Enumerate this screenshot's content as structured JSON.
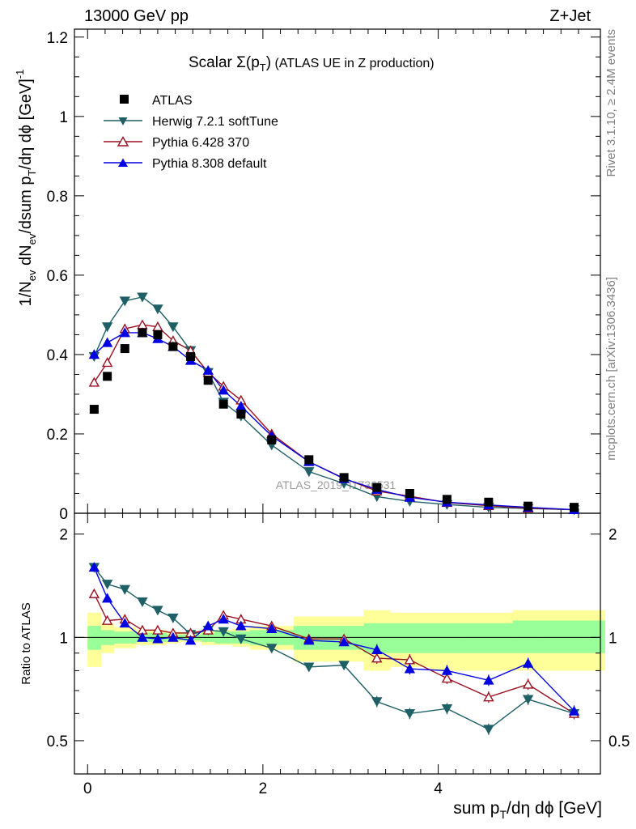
{
  "header": {
    "left": "13000 GeV pp",
    "right": "Z+Jet"
  },
  "side_labels": {
    "rivet": "Rivet 3.1.10, ≥ 2.4M events",
    "mcplots": "mcplots.cern.ch [arXiv:1306.3436]"
  },
  "colors": {
    "atlas": "#000000",
    "herwig": "#1f5f66",
    "pythia6": "#9b1020",
    "pythia8": "#0000e0",
    "band_inner": "#99ff99",
    "band_outer": "#ffff99"
  },
  "chart_data": [
    {
      "type": "line",
      "title": "Scalar Σ(p_T) (ATLAS UE in Z production)",
      "xlabel": "sum p_T/dη dϕ [GeV]",
      "ylabel": "1/N_ev dN_ev/dsum p_T/dη dϕ [GeV]^-1",
      "xlim": [
        -0.15,
        5.85
      ],
      "ylim": [
        0,
        1.22
      ],
      "yticks": [
        "0",
        "0.2",
        "0.4",
        "0.6",
        "0.8",
        "1",
        "1.2"
      ],
      "watermark": "ATLAS_2019_I1736531",
      "legend_placement": "top-left",
      "x": [
        0.075,
        0.225,
        0.425,
        0.625,
        0.8,
        0.975,
        1.175,
        1.375,
        1.55,
        1.75,
        2.1,
        2.525,
        2.925,
        3.3,
        3.675,
        4.1,
        4.575,
        5.025,
        5.55
      ],
      "series": [
        {
          "name": "ATLAS",
          "values": [
            0.262,
            0.345,
            0.415,
            0.455,
            0.45,
            0.42,
            0.395,
            0.335,
            0.275,
            0.25,
            0.185,
            0.135,
            0.09,
            0.065,
            0.05,
            0.035,
            0.028,
            0.018,
            0.015
          ]
        },
        {
          "name": "Herwig 7.2.1 softTune",
          "values": [
            0.395,
            0.47,
            0.535,
            0.545,
            0.515,
            0.47,
            0.41,
            0.355,
            0.28,
            0.245,
            0.172,
            0.105,
            0.075,
            0.042,
            0.03,
            0.022,
            0.015,
            0.012,
            0.009
          ]
        },
        {
          "name": "Pythia 6.428 370",
          "values": [
            0.33,
            0.38,
            0.465,
            0.475,
            0.47,
            0.435,
            0.41,
            0.355,
            0.32,
            0.285,
            0.2,
            0.13,
            0.088,
            0.056,
            0.043,
            0.027,
            0.019,
            0.013,
            0.009
          ]
        },
        {
          "name": "Pythia 8.308 default",
          "values": [
            0.4,
            0.43,
            0.455,
            0.455,
            0.44,
            0.42,
            0.385,
            0.36,
            0.31,
            0.27,
            0.195,
            0.13,
            0.087,
            0.06,
            0.04,
            0.028,
            0.021,
            0.015,
            0.009
          ]
        }
      ]
    },
    {
      "type": "line",
      "title": "",
      "xlabel": "sum p_T/dη dϕ [GeV]",
      "ylabel": "Ratio to ATLAS",
      "xlim": [
        -0.15,
        5.85
      ],
      "ylim": [
        0.4,
        2.3
      ],
      "yticks": [
        "0.5",
        "1",
        "2"
      ],
      "xticks": [
        "0",
        "2",
        "4"
      ],
      "reference_line": 1,
      "bands": {
        "edges": [
          0,
          0.15,
          0.3,
          0.55,
          0.7,
          0.9,
          1.05,
          1.3,
          1.45,
          1.65,
          1.85,
          2.35,
          2.7,
          3.15,
          3.45,
          3.9,
          4.3,
          4.85,
          5.2,
          5.9
        ],
        "inner": [
          [
            0.92,
            1.08
          ],
          [
            0.95,
            1.05
          ],
          [
            0.96,
            1.04
          ],
          [
            0.97,
            1.03
          ],
          [
            0.97,
            1.03
          ],
          [
            0.98,
            1.02
          ],
          [
            0.98,
            1.02
          ],
          [
            0.97,
            1.03
          ],
          [
            0.96,
            1.04
          ],
          [
            0.96,
            1.04
          ],
          [
            0.95,
            1.05
          ],
          [
            0.92,
            1.08
          ],
          [
            0.92,
            1.08
          ],
          [
            0.9,
            1.1
          ],
          [
            0.9,
            1.1
          ],
          [
            0.9,
            1.1
          ],
          [
            0.9,
            1.1
          ],
          [
            0.9,
            1.12
          ],
          [
            0.9,
            1.12
          ]
        ],
        "outer": [
          [
            0.82,
            1.18
          ],
          [
            0.9,
            1.1
          ],
          [
            0.93,
            1.07
          ],
          [
            0.95,
            1.05
          ],
          [
            0.95,
            1.05
          ],
          [
            0.96,
            1.04
          ],
          [
            0.97,
            1.03
          ],
          [
            0.95,
            1.05
          ],
          [
            0.95,
            1.05
          ],
          [
            0.94,
            1.06
          ],
          [
            0.92,
            1.08
          ],
          [
            0.85,
            1.15
          ],
          [
            0.85,
            1.15
          ],
          [
            0.8,
            1.2
          ],
          [
            0.82,
            1.18
          ],
          [
            0.8,
            1.18
          ],
          [
            0.8,
            1.18
          ],
          [
            0.8,
            1.2
          ],
          [
            0.8,
            1.2
          ]
        ]
      },
      "x": [
        0.075,
        0.225,
        0.425,
        0.625,
        0.8,
        0.975,
        1.175,
        1.375,
        1.55,
        1.75,
        2.1,
        2.525,
        2.925,
        3.3,
        3.675,
        4.1,
        4.575,
        5.025,
        5.55
      ],
      "series": [
        {
          "name": "Herwig 7.2.1 softTune",
          "values": [
            1.6,
            1.43,
            1.38,
            1.27,
            1.2,
            1.14,
            1.02,
            1.05,
            1.04,
            0.99,
            0.93,
            0.82,
            0.83,
            0.65,
            0.6,
            0.62,
            0.54,
            0.66,
            0.6
          ]
        },
        {
          "name": "Pythia 6.428 370",
          "values": [
            1.34,
            1.12,
            1.13,
            1.05,
            1.05,
            1.03,
            1.03,
            1.05,
            1.16,
            1.13,
            1.08,
            0.99,
            0.99,
            0.87,
            0.86,
            0.76,
            0.67,
            0.73,
            0.6
          ]
        },
        {
          "name": "Pythia 8.308 default",
          "values": [
            1.6,
            1.3,
            1.1,
            1.0,
            0.99,
            1.0,
            0.98,
            1.08,
            1.13,
            1.08,
            1.06,
            0.98,
            0.97,
            0.92,
            0.81,
            0.8,
            0.75,
            0.84,
            0.61
          ]
        }
      ]
    }
  ]
}
